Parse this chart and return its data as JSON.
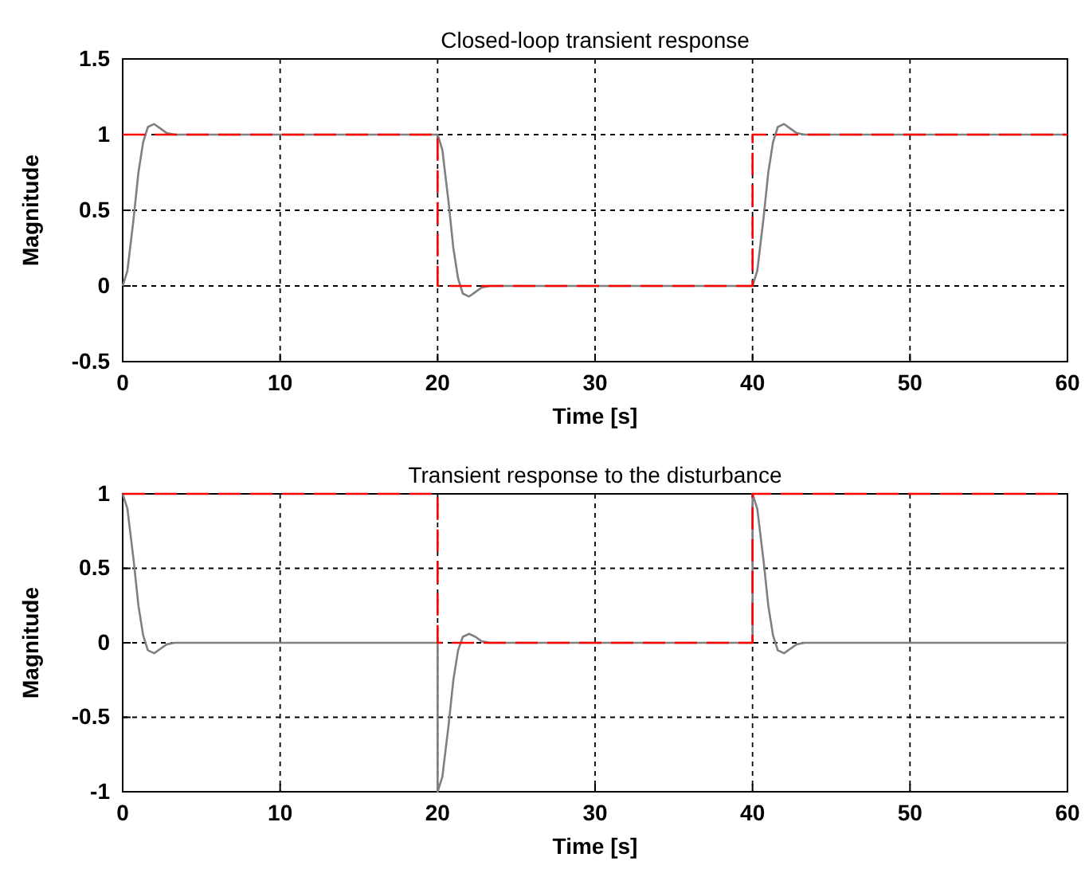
{
  "chart_data": [
    {
      "type": "line",
      "title": "Closed-loop transient response",
      "xlabel": "Time [s]",
      "ylabel": "Magnitude",
      "xlim": [
        0,
        60
      ],
      "xticks": [
        0,
        10,
        20,
        30,
        40,
        50,
        60
      ],
      "ylim": [
        -0.5,
        1.5
      ],
      "yticks": [
        -0.5,
        0,
        0.5,
        1,
        1.5
      ],
      "grid": true,
      "series": [
        {
          "color": "#808080",
          "line_style": "solid",
          "x": [
            0,
            0.3,
            0.7,
            1.0,
            1.3,
            1.6,
            2.0,
            2.4,
            2.8,
            3.3,
            20,
            20.3,
            20.7,
            21.0,
            21.3,
            21.6,
            22.0,
            22.4,
            22.8,
            23.3,
            40,
            40.3,
            40.7,
            41.0,
            41.3,
            41.6,
            42.0,
            42.4,
            42.8,
            43.3,
            60
          ],
          "values": [
            0,
            0.1,
            0.45,
            0.75,
            0.95,
            1.05,
            1.07,
            1.04,
            1.01,
            1,
            1,
            0.9,
            0.55,
            0.25,
            0.05,
            -0.05,
            -0.07,
            -0.04,
            -0.01,
            0,
            0,
            0.1,
            0.45,
            0.75,
            0.95,
            1.05,
            1.07,
            1.04,
            1.01,
            1,
            1
          ]
        },
        {
          "color": "#ff0000",
          "line_style": "dashed",
          "x": [
            0,
            20,
            20,
            40,
            40,
            60
          ],
          "values": [
            1,
            1,
            0,
            0,
            1,
            1
          ]
        }
      ]
    },
    {
      "type": "line",
      "title": "Transient response to the disturbance",
      "xlabel": "Time [s]",
      "ylabel": "Magnitude",
      "xlim": [
        0,
        60
      ],
      "xticks": [
        0,
        10,
        20,
        30,
        40,
        50,
        60
      ],
      "ylim": [
        -1,
        1
      ],
      "yticks": [
        -1,
        -0.5,
        0,
        0.5,
        1
      ],
      "grid": true,
      "series": [
        {
          "color": "#808080",
          "line_style": "solid",
          "x": [
            0,
            0.3,
            0.7,
            1.0,
            1.3,
            1.6,
            2.0,
            2.4,
            2.8,
            3.3,
            20,
            20,
            20.3,
            20.7,
            21.0,
            21.3,
            21.6,
            22.0,
            22.4,
            22.8,
            23.3,
            40,
            40,
            40.3,
            40.7,
            41.0,
            41.3,
            41.6,
            42.0,
            42.4,
            42.8,
            43.3,
            60
          ],
          "values": [
            1,
            0.9,
            0.55,
            0.25,
            0.05,
            -0.05,
            -0.07,
            -0.04,
            -0.01,
            0,
            0,
            -1,
            -0.9,
            -0.55,
            -0.25,
            -0.05,
            0.04,
            0.06,
            0.04,
            0.01,
            0,
            0,
            1,
            0.9,
            0.55,
            0.25,
            0.05,
            -0.05,
            -0.07,
            -0.04,
            -0.01,
            0,
            0
          ]
        },
        {
          "color": "#ff0000",
          "line_style": "dashed",
          "x": [
            0,
            20,
            20,
            40,
            40,
            60
          ],
          "values": [
            1,
            1,
            0,
            0,
            1,
            1
          ]
        }
      ]
    }
  ]
}
